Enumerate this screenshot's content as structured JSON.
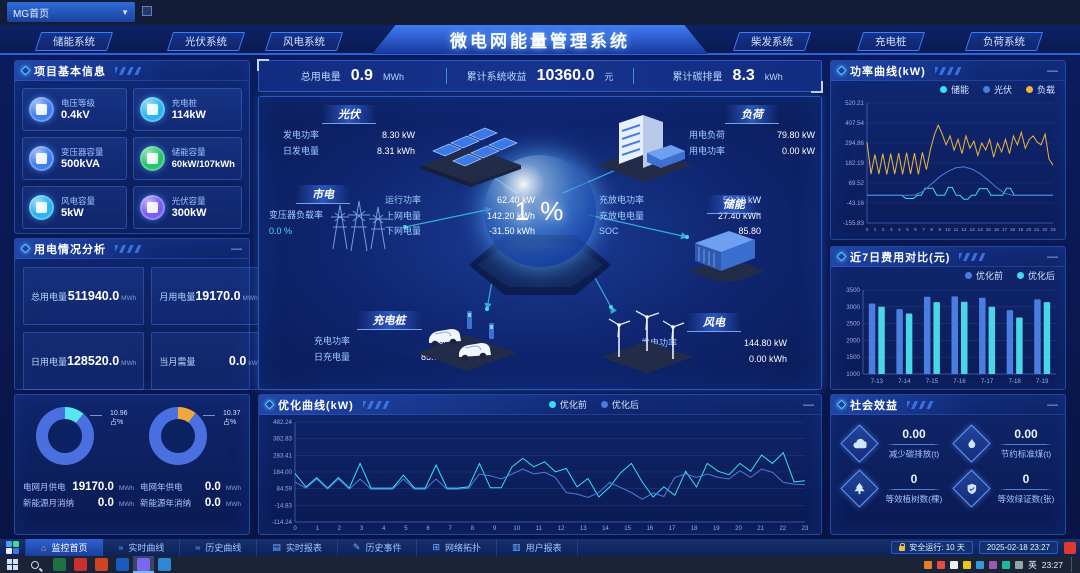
{
  "top_bar": {
    "page_select": "MG首页"
  },
  "header": {
    "title": "微电网能量管理系统",
    "tabs_left": [
      {
        "label": "储能系统"
      },
      {
        "label": "光伏系统"
      },
      {
        "label": "风电系统"
      }
    ],
    "tabs_right": [
      {
        "label": "柴发系统"
      },
      {
        "label": "充电桩"
      },
      {
        "label": "负荷系统"
      }
    ]
  },
  "project_info": {
    "title": "项目基本信息",
    "cards": [
      {
        "label": "电压等级",
        "value": "0.4kV",
        "color": "#3f7df0"
      },
      {
        "label": "充电桩",
        "value": "114kW",
        "color": "#2ab4f0"
      },
      {
        "label": "变压器容量",
        "value": "500kVA",
        "color": "#3f7df0"
      },
      {
        "label": "储能容量",
        "value": "60kW/107kWh",
        "color": "#27c46f"
      },
      {
        "label": "风电容量",
        "value": "5kW",
        "color": "#2ab4f0"
      },
      {
        "label": "光伏容量",
        "value": "300kW",
        "color": "#7a5cf0"
      }
    ]
  },
  "usage": {
    "title": "用电情况分析",
    "cells": [
      {
        "label": "总用电量",
        "value": "511940.0",
        "unit": "MWh"
      },
      {
        "label": "月用电量",
        "value": "19170.0",
        "unit": "MWh"
      },
      {
        "label": "日用电量",
        "value": "128520.0",
        "unit": "MWh"
      },
      {
        "label": "当月需量",
        "value": "0.0",
        "unit": "kW"
      }
    ]
  },
  "supply": {
    "donut_month": {
      "percent_label": "10.96",
      "suffix": "占%"
    },
    "donut_year": {
      "percent_label": "10.37",
      "suffix": "占%"
    },
    "stats": [
      {
        "label": "电网月供电",
        "value": "19170.0",
        "unit": "MWh"
      },
      {
        "label": "电网年供电",
        "value": "0.0",
        "unit": "MWh"
      },
      {
        "label": "新能源月消纳",
        "value": "0.0",
        "unit": "MWh"
      },
      {
        "label": "新能源年消纳",
        "value": "0.0",
        "unit": "MWh"
      }
    ]
  },
  "kpis": [
    {
      "label": "总用电量",
      "value": "0.9",
      "unit": "MWh"
    },
    {
      "label": "累计系统收益",
      "value": "10360.0",
      "unit": "元"
    },
    {
      "label": "累计碳排量",
      "value": "8.3",
      "unit": "kWh"
    }
  ],
  "diagram": {
    "center_value": "1 %",
    "pv": {
      "title": "光伏",
      "rows": [
        {
          "label": "发电功率",
          "value": "8.30 kW"
        },
        {
          "label": "日发电量",
          "value": "8.31 kWh"
        }
      ]
    },
    "load": {
      "title": "负荷",
      "rows": [
        {
          "label": "用电负荷",
          "value": "79.80 kW"
        },
        {
          "label": "用电功率",
          "value": "0.00 kW"
        }
      ]
    },
    "grid": {
      "title": "市电",
      "left_label": "变压器负载率",
      "left_value": "0.0 %",
      "rows": [
        {
          "label": "运行功率",
          "value": "62.40 kW"
        },
        {
          "label": "上网电量",
          "value": "142.20 kWh"
        },
        {
          "label": "下网电量",
          "value": "-31.50 kWh"
        }
      ]
    },
    "storage": {
      "title": "储能",
      "rows": [
        {
          "label": "充放电功率",
          "value": "59.10 kW"
        },
        {
          "label": "充放电电量",
          "value": "27.40 kWh"
        },
        {
          "label": "SOC",
          "value": "85.80"
        }
      ]
    },
    "charger": {
      "title": "充电桩",
      "rows": [
        {
          "label": "充电功率",
          "value": "0.00 kW"
        },
        {
          "label": "日充电量",
          "value": "85.90 kWh"
        }
      ]
    },
    "wind": {
      "title": "风电",
      "rows": [
        {
          "label": "发电功率",
          "value": "144.80 kW"
        },
        {
          "label": "日发电量",
          "value": "0.00 kWh"
        }
      ]
    }
  },
  "panels": {
    "power_curve_title": "功率曲线(kW)",
    "cost_compare_title": "近7日费用对比(元)",
    "optimize_title": "优化曲线(kW)",
    "social_title": "社会效益"
  },
  "social": {
    "items": [
      {
        "icon": "co2-cloud",
        "value": "0.00",
        "label": "减少碳排放(t)"
      },
      {
        "icon": "flame",
        "value": "0.00",
        "label": "节约标准煤(t)"
      },
      {
        "icon": "tree",
        "value": "0",
        "label": "等效植树数(棵)"
      },
      {
        "icon": "shield",
        "value": "0",
        "label": "等效绿证数(张)"
      }
    ]
  },
  "bottom_nav": {
    "items": [
      {
        "label": "监控首页",
        "icon": "home",
        "active": true
      },
      {
        "label": "实时曲线",
        "icon": "curve"
      },
      {
        "label": "历史曲线",
        "icon": "curve"
      },
      {
        "label": "实时报表",
        "icon": "report"
      },
      {
        "label": "历史事件",
        "icon": "event"
      },
      {
        "label": "网络拓扑",
        "icon": "topo"
      },
      {
        "label": "用户报表",
        "icon": "user"
      }
    ],
    "safe_run": "安全运行: 10 天",
    "datetime": "2025-02-18 23:27"
  },
  "taskbar": {
    "lang": "英",
    "time": "23:27",
    "apps": [
      {
        "name": "excel",
        "color": "#1e7145"
      },
      {
        "name": "red-app",
        "color": "#c9302c"
      },
      {
        "name": "powerpoint",
        "color": "#d04423"
      },
      {
        "name": "blue-app",
        "color": "#185abd"
      },
      {
        "name": "active-app",
        "color": "#7b68ee",
        "active": true
      },
      {
        "name": "teal-app",
        "color": "#2b88d8"
      }
    ],
    "tray_colors": [
      "#e67e22",
      "#e74c3c",
      "#ecf0f1",
      "#f1c40f",
      "#3498db",
      "#9b59b6",
      "#1abc9c",
      "#95a5a6"
    ]
  },
  "chart_data": [
    {
      "id": "power-curve",
      "type": "line",
      "title": "功率曲线(kW)",
      "xlabel": "",
      "ylabel": "kW",
      "grid": true,
      "legend_position": "top-right",
      "ylim": [
        -155.83,
        520.21
      ],
      "y_ticks": [
        "520.21",
        "407.54",
        "294.86",
        "182.19",
        "69.52",
        "-43.16",
        "-155.83"
      ],
      "x_ticks": [
        "0",
        "1",
        "2",
        "3",
        "4",
        "5",
        "6",
        "7",
        "8",
        "9",
        "10",
        "11",
        "12",
        "13",
        "14",
        "15",
        "16",
        "17",
        "18",
        "19",
        "20",
        "21",
        "22",
        "23"
      ],
      "series": [
        {
          "name": "储能",
          "color": "#35e0f2",
          "values": [
            0,
            0,
            0,
            0,
            0,
            0,
            0,
            0,
            0,
            0,
            -18,
            -18,
            -18,
            0,
            0,
            40,
            40,
            40,
            0,
            0,
            0,
            45,
            45,
            0,
            0,
            -22,
            -22,
            0,
            0,
            38,
            38,
            38,
            0,
            0,
            0,
            0,
            40,
            40,
            0,
            0,
            0,
            0,
            0,
            0,
            0,
            0,
            0,
            0,
            0
          ]
        },
        {
          "name": "光伏",
          "color": "#4a7de0",
          "values": [
            0,
            0,
            0,
            0,
            0,
            0,
            2,
            25,
            65,
            105,
            135,
            155,
            160,
            148,
            122,
            85,
            45,
            12,
            0,
            0,
            0,
            0,
            0,
            0
          ]
        },
        {
          "name": "负载",
          "color": "#f0b43c",
          "values": [
            300,
            120,
            230,
            120,
            235,
            118,
            235,
            120,
            238,
            118,
            240,
            120,
            238,
            118,
            242,
            145,
            255,
            340,
            395,
            345,
            285,
            335,
            255,
            315,
            235,
            335,
            265,
            305,
            225,
            295,
            255,
            315,
            215,
            295,
            245,
            315,
            235,
            335,
            285,
            355,
            265,
            315,
            335,
            300,
            285,
            345,
            205,
            170
          ]
        }
      ]
    },
    {
      "id": "cost-compare",
      "type": "bar",
      "title": "近7日费用对比(元)",
      "xlabel": "",
      "ylabel": "元",
      "grid": true,
      "legend_position": "top-right",
      "categories": [
        "7-13",
        "7-14",
        "7-15",
        "7-16",
        "7-17",
        "7-18",
        "7-19"
      ],
      "ylim": [
        1000,
        3500
      ],
      "y_ticks": [
        "3500",
        "3000",
        "2500",
        "2000",
        "1500",
        "1000"
      ],
      "series": [
        {
          "name": "优化前",
          "color": "#4a7de0",
          "values": [
            3100,
            2930,
            3300,
            3310,
            3270,
            2900,
            3220
          ]
        },
        {
          "name": "优化后",
          "color": "#49d6e8",
          "values": [
            3000,
            2800,
            3140,
            3150,
            3000,
            2680,
            3140
          ]
        }
      ]
    },
    {
      "id": "optimize-curve",
      "type": "line",
      "title": "优化曲线(kW)",
      "xlabel": "",
      "ylabel": "kW",
      "grid": true,
      "legend_position": "top-right",
      "ylim": [
        -114.24,
        482.24
      ],
      "y_ticks": [
        "482.24",
        "382.83",
        "283.41",
        "184.00",
        "84.59",
        "-14.83",
        "-114.24"
      ],
      "x_ticks": [
        "0",
        "1",
        "2",
        "3",
        "4",
        "5",
        "6",
        "7",
        "8",
        "9",
        "10",
        "11",
        "12",
        "13",
        "14",
        "15",
        "16",
        "17",
        "18",
        "19",
        "20",
        "21",
        "22",
        "23"
      ],
      "series": [
        {
          "name": "优化前",
          "color": "#35e0f2",
          "values": [
            175,
            95,
            150,
            88,
            152,
            88,
            235,
            88,
            88,
            88,
            165,
            88,
            88,
            225,
            88,
            88,
            95,
            235,
            90,
            90,
            215,
            265,
            215,
            245,
            185,
            205,
            95,
            145,
            35,
            95,
            178,
            235,
            125,
            35,
            95,
            45,
            188,
            95,
            235,
            188,
            168,
            235,
            188,
            285,
            235,
            300,
            125,
            132
          ]
        },
        {
          "name": "优化后",
          "color": "#4a7de0",
          "values": [
            125,
            88,
            142,
            82,
            142,
            82,
            142,
            82,
            82,
            82,
            142,
            82,
            82,
            142,
            82,
            82,
            88,
            172,
            162,
            142,
            172,
            202,
            172,
            182,
            152,
            62,
            52,
            32,
            62,
            122,
            92,
            62,
            22,
            58,
            38,
            152,
            172,
            152,
            172,
            152,
            142,
            192,
            152,
            202,
            182,
            122,
            112,
            108
          ]
        }
      ]
    },
    {
      "id": "grid-month-share",
      "type": "donut",
      "percent": 10.96,
      "label": "10.96",
      "sub": "占%",
      "slice_color": "#55e6f0",
      "ring_color": "#4a6fe0"
    },
    {
      "id": "grid-year-share",
      "type": "donut",
      "percent": 10.37,
      "label": "10.37",
      "sub": "占%",
      "slice_color": "#f0a83c",
      "ring_color": "#4a6fe0"
    }
  ]
}
